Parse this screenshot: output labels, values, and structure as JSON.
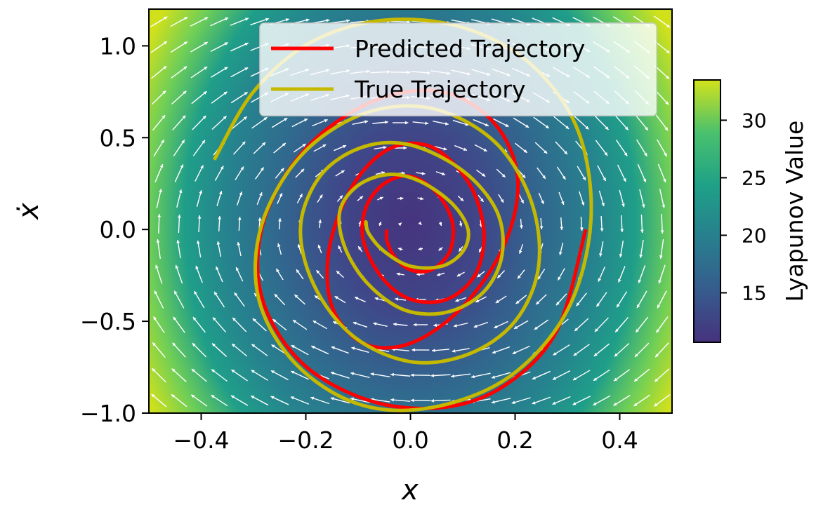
{
  "chart_data": {
    "type": "line",
    "title": "",
    "xlabel": "x",
    "ylabel": "ẋ",
    "xlim": [
      -0.5,
      0.5
    ],
    "ylim": [
      -1.0,
      1.2
    ],
    "x_ticks": [
      -0.4,
      -0.2,
      0.0,
      0.2,
      0.4
    ],
    "x_tick_labels": [
      "−0.4",
      "−0.2",
      "0.0",
      "0.2",
      "0.4"
    ],
    "y_ticks": [
      -1.0,
      -0.5,
      0.0,
      0.5,
      1.0
    ],
    "y_tick_labels": [
      "−1.0",
      "−0.5",
      "0.0",
      "0.5",
      "1.0"
    ],
    "grid": false,
    "legend_position": "top-right",
    "background": {
      "type": "heatmap",
      "quantity": "Lyapunov Value",
      "colormap": "viridis",
      "range": [
        10.7,
        33.5
      ]
    },
    "vector_field": {
      "type": "quiver",
      "color": "#ffffff"
    },
    "series": [
      {
        "name": "Predicted Trajectory",
        "color": "#ff0000",
        "x": [
          0.335,
          0.28,
          0.18,
          0.06,
          -0.08,
          -0.21,
          -0.285,
          -0.28,
          -0.2,
          -0.07,
          0.06,
          0.16,
          0.205,
          0.18,
          0.1,
          0.0,
          -0.09,
          -0.15,
          -0.155,
          -0.11,
          -0.04,
          0.04,
          0.11,
          0.14,
          0.125,
          0.07,
          0.0,
          -0.055,
          -0.09,
          -0.085,
          -0.05,
          0.0,
          0.05,
          0.08,
          0.075,
          0.04,
          0.0,
          -0.03,
          -0.045,
          -0.045
        ],
        "y": [
          0.0,
          -0.55,
          -0.85,
          -0.97,
          -0.93,
          -0.72,
          -0.36,
          0.05,
          0.44,
          0.7,
          0.75,
          0.58,
          0.28,
          -0.08,
          -0.42,
          -0.62,
          -0.62,
          -0.42,
          -0.1,
          0.24,
          0.44,
          0.45,
          0.26,
          0.0,
          -0.24,
          -0.38,
          -0.38,
          -0.26,
          -0.06,
          0.12,
          0.25,
          0.29,
          0.2,
          0.04,
          -0.12,
          -0.22,
          -0.22,
          -0.15,
          -0.06,
          0.0
        ]
      },
      {
        "name": "True Trajectory",
        "color": "#c5b900",
        "x": [
          -0.375,
          -0.3,
          -0.19,
          -0.05,
          0.1,
          0.23,
          0.32,
          0.345,
          0.3,
          0.19,
          0.04,
          -0.1,
          -0.22,
          -0.29,
          -0.285,
          -0.21,
          -0.09,
          0.04,
          0.16,
          0.23,
          0.245,
          0.2,
          0.11,
          0.0,
          -0.11,
          -0.185,
          -0.21,
          -0.17,
          -0.09,
          0.0,
          0.1,
          0.165,
          0.175,
          0.14,
          0.07,
          -0.01,
          -0.08,
          -0.125,
          -0.135,
          -0.1,
          -0.04,
          0.02,
          0.08,
          0.11,
          0.1,
          0.06,
          0.0,
          -0.05,
          -0.08,
          -0.085,
          -0.085
        ],
        "y": [
          0.38,
          0.75,
          1.02,
          1.14,
          1.1,
          0.9,
          0.54,
          0.05,
          -0.44,
          -0.8,
          -0.97,
          -0.95,
          -0.73,
          -0.38,
          0.02,
          0.4,
          0.63,
          0.66,
          0.48,
          0.16,
          -0.2,
          -0.5,
          -0.68,
          -0.72,
          -0.58,
          -0.3,
          0.02,
          0.3,
          0.45,
          0.46,
          0.32,
          0.1,
          -0.14,
          -0.34,
          -0.45,
          -0.44,
          -0.3,
          -0.1,
          0.1,
          0.24,
          0.3,
          0.26,
          0.14,
          0.0,
          -0.12,
          -0.2,
          -0.2,
          -0.12,
          -0.02,
          0.04,
          0.02
        ]
      }
    ],
    "legend": [
      {
        "label": "Predicted Trajectory",
        "color": "#ff0000"
      },
      {
        "label": "True Trajectory",
        "color": "#c5b900"
      }
    ],
    "colorbar": {
      "label": "Lyapunov Value",
      "ticks": [
        15,
        20,
        25,
        30
      ],
      "tick_labels": [
        "15",
        "20",
        "25",
        "30"
      ],
      "range": [
        10.7,
        33.5
      ]
    }
  }
}
